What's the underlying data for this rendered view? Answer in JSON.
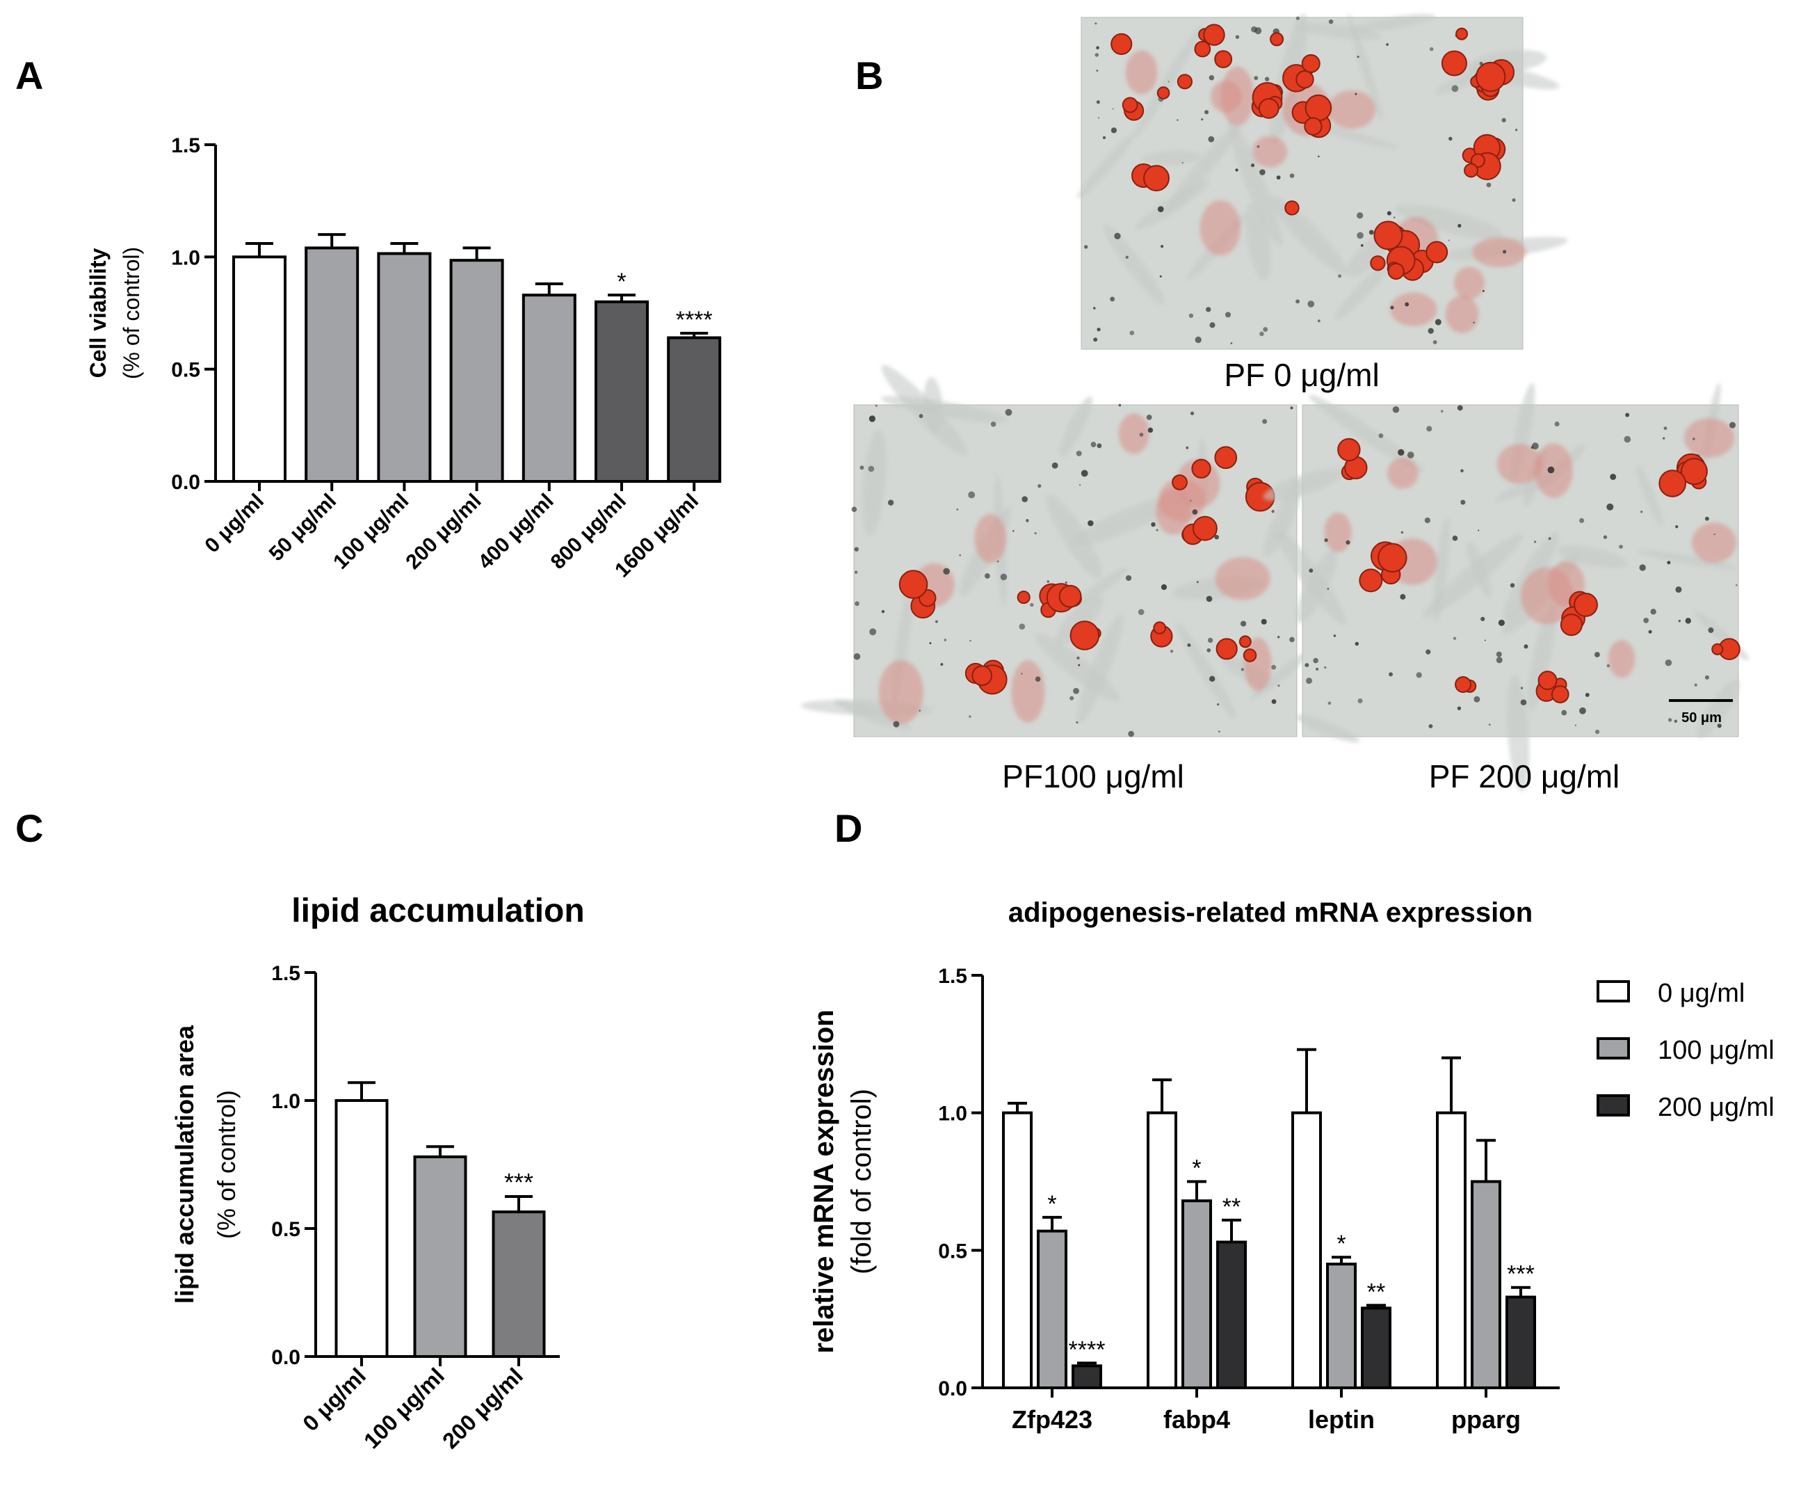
{
  "panels": {
    "a": {
      "letter": "A"
    },
    "b": {
      "letter": "B"
    },
    "c": {
      "letter": "C"
    },
    "d": {
      "letter": "D"
    }
  },
  "chart_data": [
    {
      "id": "A",
      "type": "bar",
      "title": "",
      "ylabel": "Cell viability",
      "ylabel2": "(% of control)",
      "xlabel": "",
      "ylim": [
        0,
        1.5
      ],
      "yticks": [
        "0.0",
        "0.5",
        "1.0",
        "1.5"
      ],
      "categories": [
        "0 μg/ml",
        "50 μg/ml",
        "100 μg/ml",
        "200 μg/ml",
        "400 μg/ml",
        "800 μg/ml",
        "1600 μg/ml"
      ],
      "values": [
        1.0,
        1.04,
        1.015,
        0.985,
        0.83,
        0.8,
        0.64
      ],
      "errors": [
        0.06,
        0.06,
        0.045,
        0.055,
        0.05,
        0.03,
        0.02
      ],
      "annotations": [
        "",
        "",
        "",
        "",
        "",
        "*",
        "****"
      ],
      "colors": [
        "#ffffff",
        "#a2a3a7",
        "#a2a3a7",
        "#a2a3a7",
        "#a2a3a7",
        "#5c5c5e",
        "#5c5c5e"
      ]
    },
    {
      "id": "C",
      "type": "bar",
      "title": "lipid accumulation",
      "ylabel": "lipid accumulation area",
      "ylabel2": "(% of control)",
      "xlabel": "",
      "ylim": [
        0,
        1.5
      ],
      "yticks": [
        "0.0",
        "0.5",
        "1.0",
        "1.5"
      ],
      "categories": [
        "0 μg/ml",
        "100 μg/ml",
        "200 μg/ml"
      ],
      "values": [
        1.0,
        0.78,
        0.565
      ],
      "errors": [
        0.07,
        0.04,
        0.06
      ],
      "annotations": [
        "",
        "",
        "***"
      ],
      "colors": [
        "#ffffff",
        "#a2a3a7",
        "#7d7d7f"
      ]
    },
    {
      "id": "D",
      "type": "bar",
      "title": "adipogenesis-related mRNA expression",
      "ylabel": "relative mRNA expression",
      "ylabel2": "(fold of control)",
      "xlabel": "",
      "ylim": [
        0,
        1.5
      ],
      "yticks": [
        "0.0",
        "0.5",
        "1.0",
        "1.5"
      ],
      "legend_position": "right",
      "categories": [
        "Zfp423",
        "fabp4",
        "leptin",
        "pparg"
      ],
      "series": [
        {
          "name": "0 μg/ml",
          "color": "#ffffff",
          "values": [
            1.0,
            1.0,
            1.0,
            1.0
          ],
          "errors": [
            0.035,
            0.12,
            0.23,
            0.2
          ],
          "annotations": [
            "",
            "",
            "",
            ""
          ]
        },
        {
          "name": "100 μg/ml",
          "color": "#a2a3a7",
          "values": [
            0.57,
            0.68,
            0.45,
            0.75
          ],
          "errors": [
            0.05,
            0.07,
            0.025,
            0.15
          ],
          "annotations": [
            "*",
            "*",
            "*",
            ""
          ]
        },
        {
          "name": "200 μg/ml",
          "color": "#2f2f31",
          "values": [
            0.08,
            0.53,
            0.29,
            0.33
          ],
          "errors": [
            0.01,
            0.08,
            0.01,
            0.035
          ],
          "annotations": [
            "****",
            "**",
            "**",
            "***"
          ]
        }
      ]
    }
  ],
  "micrographs": {
    "image_0": {
      "caption": "PF 0 μg/ml"
    },
    "image_100": {
      "caption": "PF100 μg/ml"
    },
    "image_200": {
      "caption": "PF 200 μg/ml",
      "scale_bar": "50 μm"
    }
  }
}
